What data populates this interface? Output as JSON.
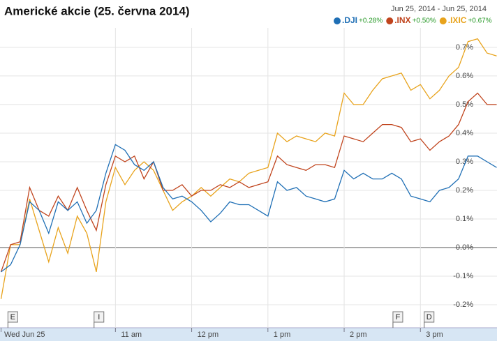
{
  "chart_data": {
    "type": "line",
    "title": "Americké akcie (25. června 2014)",
    "date_range": "Jun 25, 2014  -  Jun 25, 2014",
    "x": [
      9.5,
      9.625,
      9.75,
      9.875,
      10,
      10.125,
      10.25,
      10.375,
      10.5,
      10.625,
      10.75,
      10.875,
      11,
      11.125,
      11.25,
      11.375,
      11.5,
      11.625,
      11.75,
      11.875,
      12,
      12.125,
      12.25,
      12.375,
      12.5,
      12.625,
      12.75,
      12.875,
      13,
      13.125,
      13.25,
      13.375,
      13.5,
      13.625,
      13.75,
      13.875,
      14,
      14.125,
      14.25,
      14.375,
      14.5,
      14.625,
      14.75,
      14.875,
      15,
      15.125,
      15.25,
      15.375,
      15.5,
      15.625,
      15.75,
      15.875,
      16
    ],
    "series": [
      {
        "name": ".DJI",
        "change": "+0.28%",
        "color": "#1f6fb5",
        "values": [
          -0.085,
          -0.06,
          0.01,
          0.16,
          0.13,
          0.05,
          0.16,
          0.13,
          0.16,
          0.085,
          0.13,
          0.26,
          0.36,
          0.34,
          0.29,
          0.27,
          0.3,
          0.21,
          0.17,
          0.18,
          0.16,
          0.13,
          0.09,
          0.12,
          0.16,
          0.15,
          0.15,
          0.13,
          0.11,
          0.23,
          0.2,
          0.21,
          0.18,
          0.17,
          0.16,
          0.17,
          0.27,
          0.24,
          0.26,
          0.24,
          0.24,
          0.26,
          0.24,
          0.18,
          0.17,
          0.16,
          0.2,
          0.21,
          0.24,
          0.32,
          0.32,
          0.3,
          0.28
        ]
      },
      {
        "name": ".INX",
        "change": "+0.50%",
        "color": "#c0441d",
        "values": [
          -0.085,
          0.01,
          0.02,
          0.21,
          0.13,
          0.11,
          0.18,
          0.13,
          0.21,
          0.13,
          0.06,
          0.22,
          0.32,
          0.3,
          0.32,
          0.24,
          0.3,
          0.2,
          0.2,
          0.22,
          0.18,
          0.2,
          0.2,
          0.22,
          0.21,
          0.23,
          0.21,
          0.22,
          0.23,
          0.32,
          0.29,
          0.28,
          0.27,
          0.29,
          0.29,
          0.28,
          0.39,
          0.38,
          0.37,
          0.4,
          0.43,
          0.43,
          0.42,
          0.37,
          0.38,
          0.34,
          0.37,
          0.39,
          0.43,
          0.51,
          0.54,
          0.5,
          0.5
        ]
      },
      {
        "name": ".IXIC",
        "change": "+0.67%",
        "color": "#e8a31c",
        "values": [
          -0.18,
          0.01,
          0.01,
          0.17,
          0.06,
          -0.05,
          0.07,
          -0.02,
          0.11,
          0.05,
          -0.085,
          0.16,
          0.28,
          0.22,
          0.27,
          0.3,
          0.27,
          0.2,
          0.13,
          0.16,
          0.18,
          0.21,
          0.18,
          0.21,
          0.24,
          0.23,
          0.26,
          0.27,
          0.28,
          0.4,
          0.37,
          0.39,
          0.38,
          0.37,
          0.4,
          0.39,
          0.54,
          0.5,
          0.5,
          0.55,
          0.59,
          0.6,
          0.61,
          0.55,
          0.57,
          0.52,
          0.55,
          0.6,
          0.63,
          0.72,
          0.73,
          0.68,
          0.67
        ]
      }
    ],
    "xlim": [
      9.5,
      16
    ],
    "xticks": [
      {
        "value": 9.5,
        "label": "Wed Jun 25"
      },
      {
        "value": 11,
        "label": "11 am"
      },
      {
        "value": 12,
        "label": "12 pm"
      },
      {
        "value": 13,
        "label": "1 pm"
      },
      {
        "value": 14,
        "label": "2 pm"
      },
      {
        "value": 15,
        "label": "3 pm"
      }
    ],
    "ylim": [
      -0.256,
      0.768
    ],
    "yticks": [
      {
        "value": 0.7,
        "label": "0.7%"
      },
      {
        "value": 0.6,
        "label": "0.6%"
      },
      {
        "value": 0.5,
        "label": "0.5%"
      },
      {
        "value": 0.4,
        "label": "0.4%"
      },
      {
        "value": 0.3,
        "label": "0.3%"
      },
      {
        "value": 0.2,
        "label": "0.2%"
      },
      {
        "value": 0.1,
        "label": "0.1%"
      },
      {
        "value": 0,
        "label": "0.0%"
      },
      {
        "value": -0.1,
        "label": "-0.1%"
      },
      {
        "value": -0.2,
        "label": "-0.2%"
      }
    ],
    "events": [
      {
        "x": 9.59,
        "label": "E"
      },
      {
        "x": 10.72,
        "label": "I"
      },
      {
        "x": 14.64,
        "label": "F"
      },
      {
        "x": 15.05,
        "label": "D"
      }
    ],
    "grid": true
  }
}
